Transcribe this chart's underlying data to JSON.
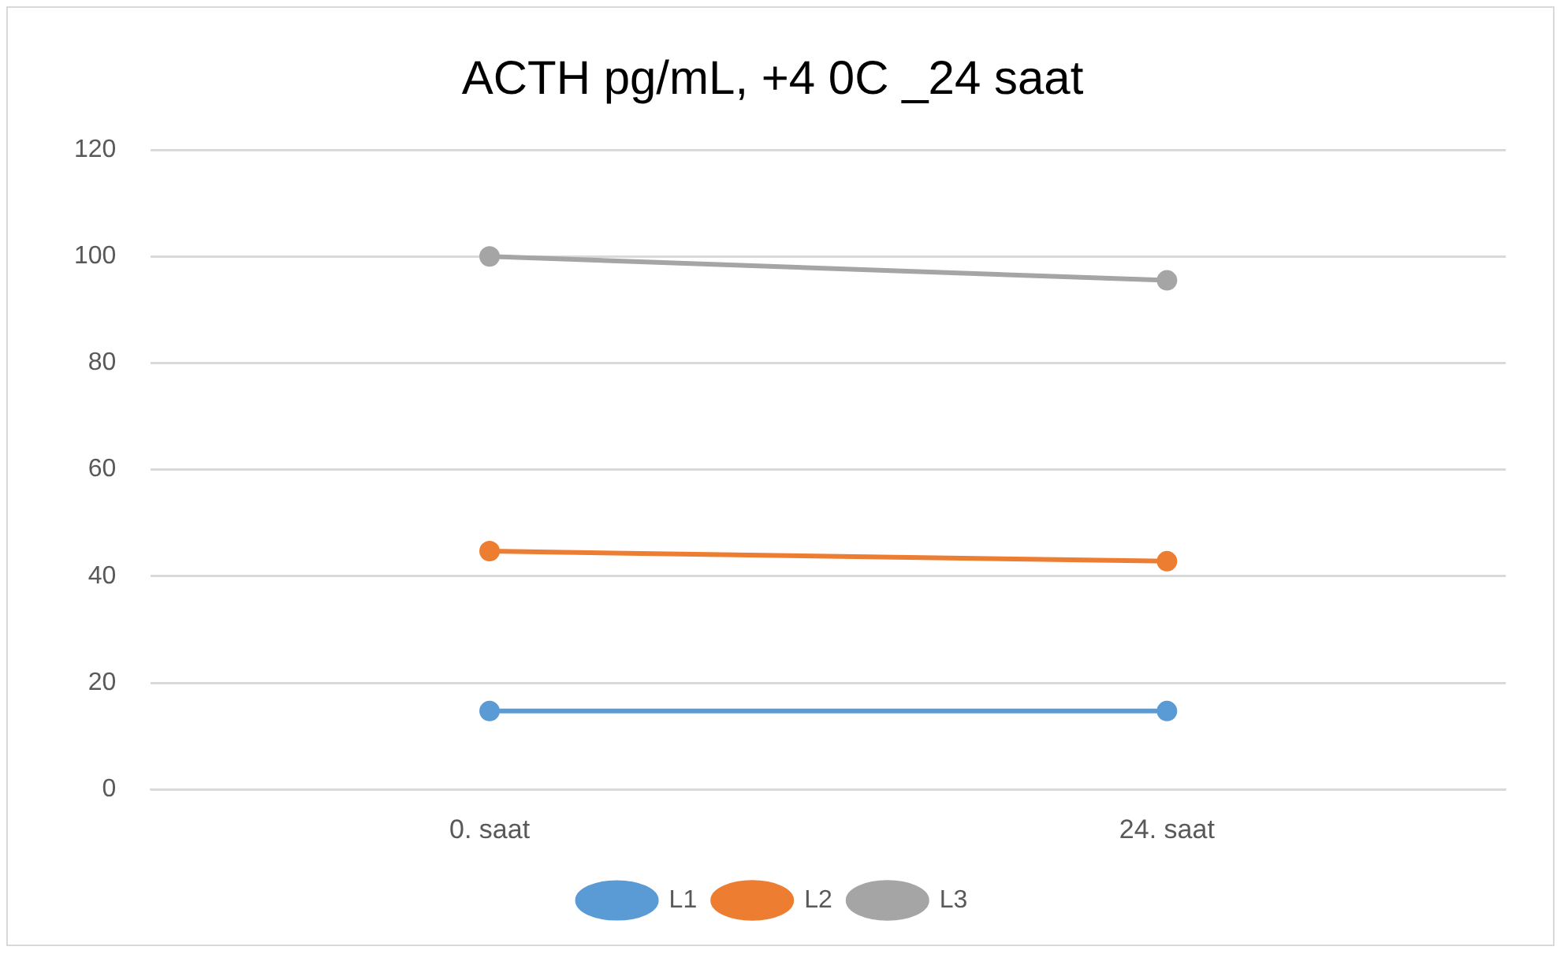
{
  "chart_data": {
    "type": "line",
    "title": "ACTH pg/mL, +4 0C _24 saat",
    "categories": [
      "0. saat",
      "24. saat"
    ],
    "series": [
      {
        "name": "L1",
        "color": "#5b9bd5",
        "values": [
          14.7,
          14.7
        ]
      },
      {
        "name": "L2",
        "color": "#ed7d31",
        "values": [
          44.7,
          42.8
        ]
      },
      {
        "name": "L3",
        "color": "#a5a5a5",
        "values": [
          100,
          95.5
        ]
      }
    ],
    "ylim": [
      0,
      120
    ],
    "yticks": [
      0,
      20,
      40,
      60,
      80,
      100,
      120
    ],
    "grid": "y",
    "legend": "bottom",
    "marker": "circle",
    "line_style": "solid"
  }
}
